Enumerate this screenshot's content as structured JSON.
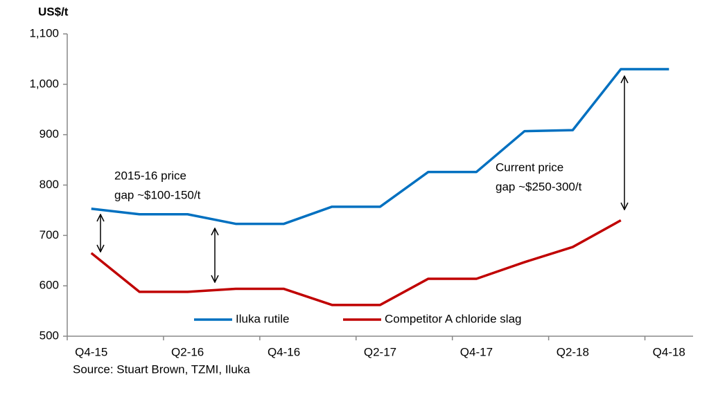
{
  "chart_data": {
    "type": "line",
    "y_label": "US$/t",
    "source": "Source: Stuart Brown, TZMI, Iluka",
    "categories": [
      "Q4-15",
      null,
      "Q2-16",
      null,
      "Q4-16",
      null,
      "Q2-17",
      null,
      "Q4-17",
      null,
      "Q2-18",
      null,
      "Q4-18"
    ],
    "series": [
      {
        "name": "Iluka rutile",
        "color": "#0070c0",
        "values": [
          753,
          742,
          742,
          723,
          723,
          757,
          757,
          826,
          826,
          907,
          909,
          1030,
          1030
        ]
      },
      {
        "name": "Competitor A chloride slag",
        "color": "#c00000",
        "values": [
          665,
          588,
          588,
          594,
          594,
          562,
          562,
          614,
          614,
          647,
          677,
          730,
          null
        ]
      }
    ],
    "ylim": [
      500,
      1100
    ],
    "yticks": [
      500,
      600,
      700,
      800,
      900,
      {
        "value": 1000,
        "label": "1,000"
      },
      {
        "value": 1100,
        "label": "1,100"
      }
    ],
    "grid": false,
    "legend": "bottom",
    "annotations": [
      {
        "lines": [
          "2015-16 price",
          "gap ~$100-150/t"
        ]
      },
      {
        "lines": [
          "Current price",
          "gap ~$250-300/t"
        ]
      }
    ]
  }
}
